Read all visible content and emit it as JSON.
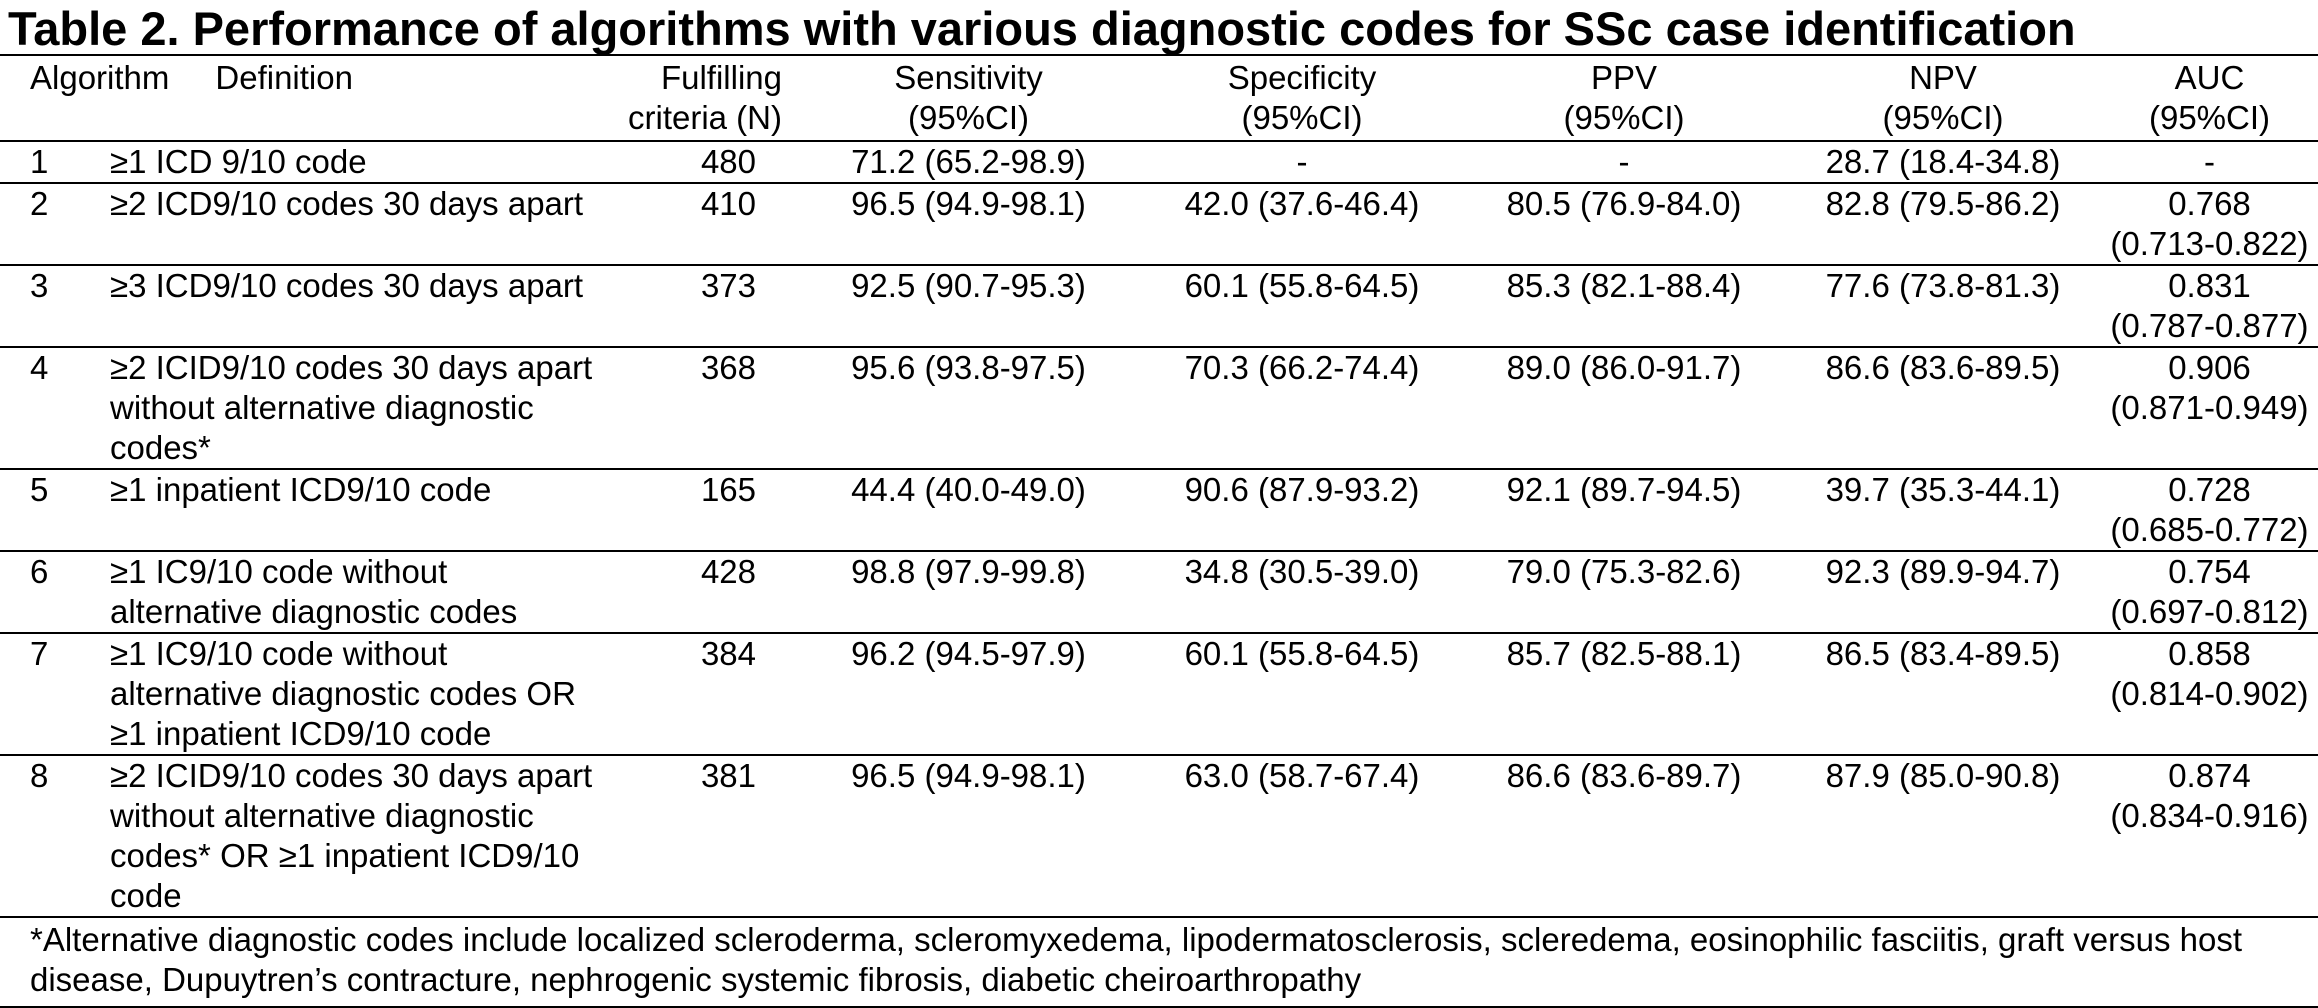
{
  "title": "Table 2. Performance of algorithms with various diagnostic codes for SSc case identification",
  "headers": {
    "algorithm": "Algorithm",
    "definition": "Definition",
    "fulfilling_1": "Fulfilling",
    "fulfilling_2": "criteria (N)",
    "sensitivity_1": "Sensitivity",
    "sensitivity_2": "(95%CI)",
    "specificity_1": "Specificity",
    "specificity_2": "(95%CI)",
    "ppv_1": "PPV",
    "ppv_2": "(95%CI)",
    "npv_1": "NPV",
    "npv_2": "(95%CI)",
    "auc_1": "AUC",
    "auc_2": "(95%CI)"
  },
  "rows": [
    {
      "algorithm": "1",
      "definition": "≥1 ICD 9/10 code",
      "n": "480",
      "sensitivity": "71.2 (65.2-98.9)",
      "specificity": "-",
      "ppv": "-",
      "npv": "28.7 (18.4-34.8)",
      "auc_1": "-",
      "auc_2": ""
    },
    {
      "algorithm": "2",
      "definition": "≥2 ICD9/10 codes 30 days apart",
      "n": "410",
      "sensitivity": "96.5 (94.9-98.1)",
      "specificity": "42.0 (37.6-46.4)",
      "ppv": "80.5 (76.9-84.0)",
      "npv": "82.8 (79.5-86.2)",
      "auc_1": "0.768",
      "auc_2": "(0.713-0.822)"
    },
    {
      "algorithm": "3",
      "definition": "≥3 ICD9/10 codes 30 days apart",
      "n": "373",
      "sensitivity": "92.5 (90.7-95.3)",
      "specificity": "60.1 (55.8-64.5)",
      "ppv": "85.3 (82.1-88.4)",
      "npv": "77.6 (73.8-81.3)",
      "auc_1": "0.831",
      "auc_2": "(0.787-0.877)"
    },
    {
      "algorithm": "4",
      "definition": "≥2 ICID9/10 codes 30 days apart without alternative diagnostic codes*",
      "n": "368",
      "sensitivity": "95.6 (93.8-97.5)",
      "specificity": "70.3 (66.2-74.4)",
      "ppv": "89.0 (86.0-91.7)",
      "npv": "86.6 (83.6-89.5)",
      "auc_1": "0.906",
      "auc_2": "(0.871-0.949)"
    },
    {
      "algorithm": "5",
      "definition": "≥1 inpatient ICD9/10 code",
      "n": "165",
      "sensitivity": "44.4 (40.0-49.0)",
      "specificity": "90.6 (87.9-93.2)",
      "ppv": "92.1 (89.7-94.5)",
      "npv": "39.7 (35.3-44.1)",
      "auc_1": "0.728",
      "auc_2": "(0.685-0.772)"
    },
    {
      "algorithm": "6",
      "definition": "≥1 IC9/10 code without alternative diagnostic codes",
      "n": "428",
      "sensitivity": "98.8 (97.9-99.8)",
      "specificity": "34.8 (30.5-39.0)",
      "ppv": "79.0 (75.3-82.6)",
      "npv": "92.3 (89.9-94.7)",
      "auc_1": "0.754",
      "auc_2": "(0.697-0.812)"
    },
    {
      "algorithm": "7",
      "definition": "≥1 IC9/10 code without alternative diagnostic codes OR ≥1 inpatient ICD9/10 code",
      "n": "384",
      "sensitivity": "96.2 (94.5-97.9)",
      "specificity": "60.1 (55.8-64.5)",
      "ppv": "85.7 (82.5-88.1)",
      "npv": "86.5 (83.4-89.5)",
      "auc_1": "0.858",
      "auc_2": "(0.814-0.902)"
    },
    {
      "algorithm": "8",
      "definition": "≥2 ICID9/10 codes 30 days apart without alternative diagnostic codes* OR ≥1 inpatient ICD9/10 code",
      "n": "381",
      "sensitivity": "96.5 (94.9-98.1)",
      "specificity": "63.0 (58.7-67.4)",
      "ppv": "86.6 (83.6-89.7)",
      "npv": "87.9 (85.0-90.8)",
      "auc_1": "0.874",
      "auc_2": "(0.834-0.916)"
    }
  ],
  "footnote": "*Alternative diagnostic codes include localized scleroderma, scleromyxedema, lipodermatosclerosis, scleredema, eosinophilic fasciitis, graft versus host disease, Dupuytren’s contracture, nephrogenic systemic fibrosis, diabetic cheiroarthropathy"
}
